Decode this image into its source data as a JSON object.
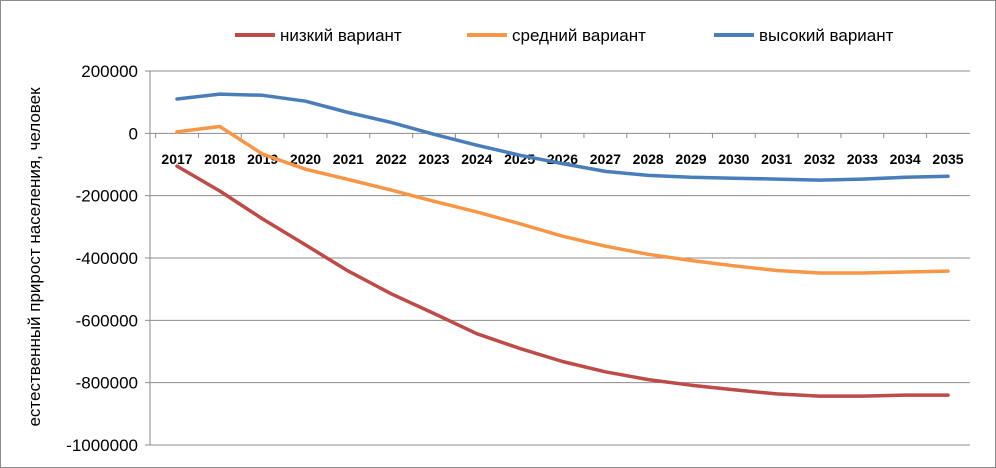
{
  "chart_data": {
    "type": "line",
    "title": "",
    "xlabel": "",
    "ylabel": "естественный прирост населения, человек",
    "ylim": [
      -1000000,
      200000
    ],
    "yticks": [
      200000,
      0,
      -200000,
      -400000,
      -600000,
      -800000,
      -1000000
    ],
    "ytick_labels": [
      "200000",
      "0",
      "-200000",
      "-400000",
      "-600000",
      "-800000",
      "-1000000"
    ],
    "grid": true,
    "legend_position": "top",
    "categories": [
      "2017",
      "2018",
      "2019",
      "2020",
      "2021",
      "2022",
      "2023",
      "2024",
      "2025",
      "2026",
      "2027",
      "2028",
      "2029",
      "2030",
      "2031",
      "2032",
      "2033",
      "2034",
      "2035"
    ],
    "series": [
      {
        "name": "низкий вариант",
        "color": "#BE4B48",
        "values": [
          -105000,
          -185000,
          -275000,
          -358000,
          -442000,
          -515000,
          -578000,
          -643000,
          -690000,
          -732000,
          -765000,
          -790000,
          -808000,
          -823000,
          -836000,
          -843000,
          -843000,
          -840000,
          -840000
        ]
      },
      {
        "name": "средний вариант",
        "color": "#F79646",
        "values": [
          5000,
          22000,
          -67000,
          -115000,
          -148000,
          -182000,
          -218000,
          -252000,
          -290000,
          -330000,
          -362000,
          -388000,
          -408000,
          -425000,
          -440000,
          -448000,
          -448000,
          -445000,
          -442000
        ]
      },
      {
        "name": "высокий вариант",
        "color": "#4A7EBB",
        "values": [
          110000,
          126000,
          122000,
          103000,
          67000,
          35000,
          -3000,
          -38000,
          -70000,
          -97000,
          -122000,
          -135000,
          -141000,
          -144000,
          -147000,
          -150000,
          -147000,
          -141000,
          -138000
        ]
      }
    ]
  }
}
